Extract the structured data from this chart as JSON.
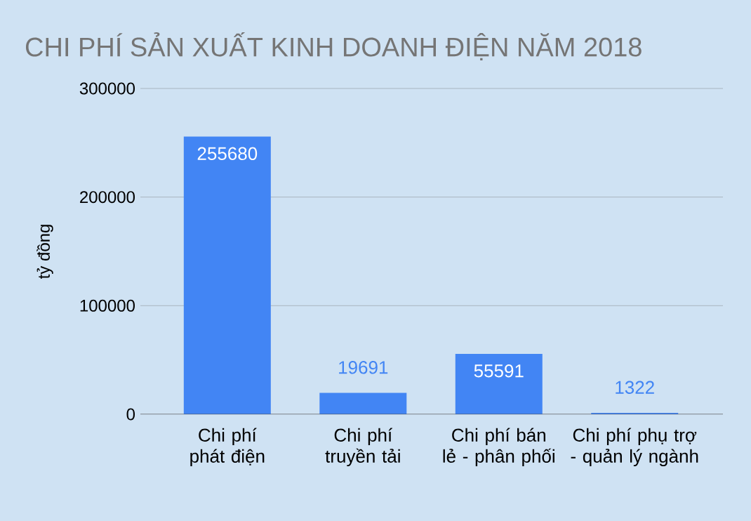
{
  "chart_data": {
    "type": "bar",
    "title": "CHI PHÍ SẢN XUẤT KINH DOANH ĐIỆN NĂM 2018",
    "ylabel": "tỷ đồng",
    "categories": [
      "Chi phí phát điện",
      "Chi phí truyền tải",
      "Chi phí bán lẻ - phân phối",
      "Chi phí phụ trợ - quản lý ngành"
    ],
    "values": [
      255680,
      19691,
      55591,
      1322
    ],
    "color": "#4285f4",
    "ylim": [
      0,
      300000
    ],
    "yticks": [
      0,
      100000,
      200000,
      300000
    ],
    "grid": "y",
    "data_labels": true
  }
}
